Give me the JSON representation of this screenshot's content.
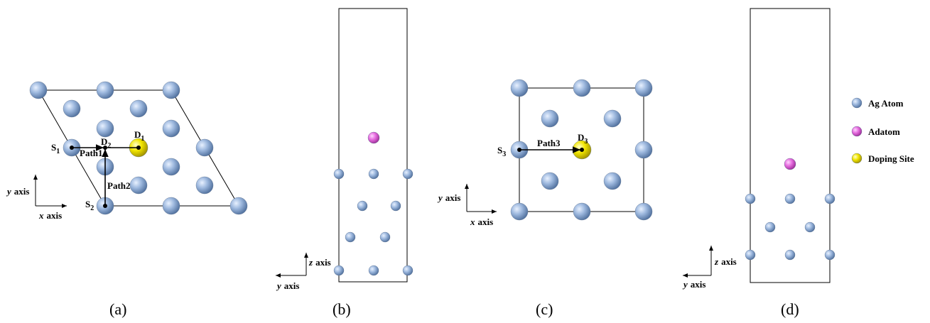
{
  "panel_a": {
    "caption": "(a)",
    "s1": {
      "main": "S",
      "sub": "1"
    },
    "d2": {
      "main": "D",
      "sub": "2"
    },
    "d1": {
      "main": "D",
      "sub": "1"
    },
    "s2": {
      "main": "S",
      "sub": "2"
    },
    "path1": "Path1",
    "path2": "Path2",
    "y_axis": {
      "var": "y",
      "word": "axis"
    },
    "x_axis": {
      "var": "x",
      "word": "axis"
    }
  },
  "panel_b": {
    "caption": "(b)",
    "z_axis": {
      "var": "z",
      "word": "axis"
    },
    "y_axis": {
      "var": "y",
      "word": "axis"
    }
  },
  "panel_c": {
    "caption": "(c)",
    "s3": {
      "main": "S",
      "sub": "3"
    },
    "d3": {
      "main": "D",
      "sub": "3"
    },
    "path3": "Path3",
    "y_axis": {
      "var": "y",
      "word": "axis"
    },
    "x_axis": {
      "var": "x",
      "word": "axis"
    }
  },
  "panel_d": {
    "caption": "(d)",
    "z_axis": {
      "var": "z",
      "word": "axis"
    },
    "y_axis": {
      "var": "y",
      "word": "axis"
    }
  },
  "legend": [
    "Ag Atom",
    "Adatom",
    "Doping Site"
  ]
}
